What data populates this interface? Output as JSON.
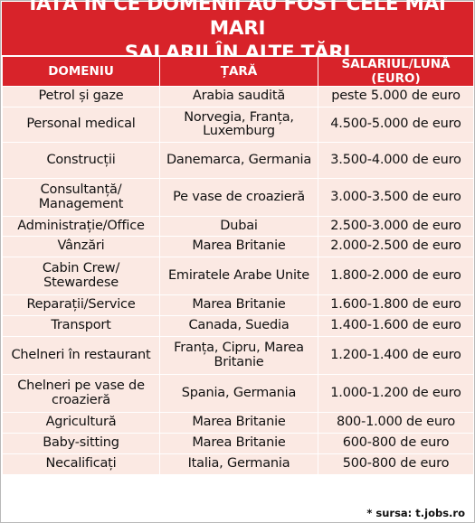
{
  "title": {
    "line1": "IATĂ ÎN CE DOMENII AU FOST CELE MAI MARI",
    "line2": "SALARII ÎN ALTE ȚĂRI"
  },
  "headers": [
    "DOMENIU",
    "ȚARĂ",
    "SALARIUL/LUNĂ (EURO)"
  ],
  "rows": [
    {
      "domain": "Petrol și gaze",
      "country": "Arabia saudită",
      "salary": "peste 5.000 de euro"
    },
    {
      "domain": "Personal medical",
      "country": "Norvegia, Franța, Luxemburg",
      "salary": "4.500-5.000 de euro"
    },
    {
      "domain": "Construcții",
      "country": "Danemarca, Germania",
      "salary": "3.500-4.000 de euro"
    },
    {
      "domain": "Consultanță/ Management",
      "country": "Pe vase de croazieră",
      "salary": "3.000-3.500 de euro"
    },
    {
      "domain": "Administrație/Office",
      "country": "Dubai",
      "salary": "2.500-3.000 de euro"
    },
    {
      "domain": "Vânzări",
      "country": "Marea Britanie",
      "salary": "2.000-2.500 de euro"
    },
    {
      "domain": "Cabin Crew/ Stewardese",
      "country": "Emiratele Arabe Unite",
      "salary": "1.800-2.000 de euro"
    },
    {
      "domain": "Reparații/Service",
      "country": "Marea Britanie",
      "salary": "1.600-1.800 de euro"
    },
    {
      "domain": "Transport",
      "country": "Canada, Suedia",
      "salary": "1.400-1.600 de euro"
    },
    {
      "domain": "Chelneri în restaurant",
      "country": "Franța, Cipru, Marea Britanie",
      "salary": "1.200-1.400 de euro"
    },
    {
      "domain": "Chelneri pe vase de croazieră",
      "country": "Spania, Germania",
      "salary": "1.000-1.200 de euro"
    },
    {
      "domain": "Agricultură",
      "country": "Marea Britanie",
      "salary": "800-1.000 de euro"
    },
    {
      "domain": "Baby-sitting",
      "country": "Marea Britanie",
      "salary": "600-800 de euro"
    },
    {
      "domain": "Necalificați",
      "country": "Italia, Germania",
      "salary": "500-800 de euro"
    }
  ],
  "source": "* sursa: t.jobs.ro",
  "colors": {
    "accent": "#d8232a",
    "cell_bg": "#fbe9e3"
  }
}
